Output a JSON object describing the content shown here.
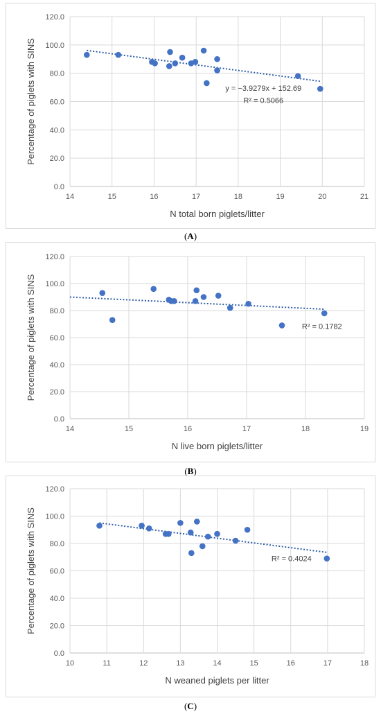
{
  "chart_data": [
    {
      "type": "scatter",
      "panel_label": "A",
      "xlabel": "N total born piglets/litter",
      "ylabel": "Percentage of piglets with SINS",
      "xlim": [
        14,
        21
      ],
      "xticks": [
        14,
        15,
        16,
        17,
        18,
        19,
        20,
        21
      ],
      "ylim": [
        0,
        120
      ],
      "yticks": [
        0,
        20,
        40,
        60,
        80,
        100,
        120
      ],
      "ytick_labels": [
        "0.0",
        "20.0",
        "40.0",
        "60.0",
        "80.0",
        "100.0",
        "120.0"
      ],
      "grid": "horizontal",
      "points": [
        {
          "x": 14.4,
          "y": 93
        },
        {
          "x": 15.15,
          "y": 93
        },
        {
          "x": 15.95,
          "y": 88
        },
        {
          "x": 16.02,
          "y": 87
        },
        {
          "x": 16.36,
          "y": 85
        },
        {
          "x": 16.38,
          "y": 95
        },
        {
          "x": 16.5,
          "y": 87
        },
        {
          "x": 16.67,
          "y": 91
        },
        {
          "x": 16.88,
          "y": 87
        },
        {
          "x": 16.98,
          "y": 88
        },
        {
          "x": 17.18,
          "y": 96
        },
        {
          "x": 17.25,
          "y": 73
        },
        {
          "x": 17.5,
          "y": 90
        },
        {
          "x": 17.5,
          "y": 82
        },
        {
          "x": 19.42,
          "y": 78
        },
        {
          "x": 19.95,
          "y": 69
        }
      ],
      "trendline": {
        "x_start": 14.4,
        "x_end": 19.95,
        "slope": -3.9279,
        "intercept": 152.69
      },
      "equation_label": "y = −3.9279x + 152.69",
      "r2_label": "R² = 0.5066"
    },
    {
      "type": "scatter",
      "panel_label": "B",
      "xlabel": "N live born piglets/litter",
      "ylabel": "Percentage of piglets with SINS",
      "xlim": [
        14,
        19
      ],
      "xticks": [
        14,
        15,
        16,
        17,
        18,
        19
      ],
      "ylim": [
        0,
        120
      ],
      "yticks": [
        0,
        20,
        40,
        60,
        80,
        100,
        120
      ],
      "ytick_labels": [
        "0.0",
        "20.0",
        "40.0",
        "60.0",
        "80.0",
        "100.0",
        "120.0"
      ],
      "grid": "horizontal",
      "points": [
        {
          "x": 14.55,
          "y": 93
        },
        {
          "x": 14.72,
          "y": 73
        },
        {
          "x": 15.42,
          "y": 96
        },
        {
          "x": 15.68,
          "y": 88
        },
        {
          "x": 15.72,
          "y": 87
        },
        {
          "x": 15.77,
          "y": 87
        },
        {
          "x": 16.13,
          "y": 87
        },
        {
          "x": 16.15,
          "y": 95
        },
        {
          "x": 16.27,
          "y": 90
        },
        {
          "x": 16.52,
          "y": 91
        },
        {
          "x": 16.72,
          "y": 82
        },
        {
          "x": 17.03,
          "y": 85
        },
        {
          "x": 17.6,
          "y": 69
        },
        {
          "x": 18.32,
          "y": 78
        }
      ],
      "trendline": {
        "x_start": 14.0,
        "x_end": 18.32,
        "y_start": 90.0,
        "y_end": 81.0
      },
      "r2_label": "R² = 0.1782"
    },
    {
      "type": "scatter",
      "panel_label": "C",
      "xlabel": "N weaned piglets per litter",
      "ylabel": "Percentage of piglets with SINS",
      "xlim": [
        10,
        18
      ],
      "xticks": [
        10,
        11,
        12,
        13,
        14,
        15,
        16,
        17,
        18
      ],
      "ylim": [
        0,
        120
      ],
      "yticks": [
        0,
        20,
        40,
        60,
        80,
        100,
        120
      ],
      "ytick_labels": [
        "0.0",
        "20.0",
        "40.0",
        "60.0",
        "80.0",
        "100.0",
        "120.0"
      ],
      "grid": "horizontal",
      "points": [
        {
          "x": 10.8,
          "y": 93
        },
        {
          "x": 11.95,
          "y": 93
        },
        {
          "x": 12.15,
          "y": 91
        },
        {
          "x": 12.6,
          "y": 87
        },
        {
          "x": 12.68,
          "y": 87
        },
        {
          "x": 13.0,
          "y": 95
        },
        {
          "x": 13.28,
          "y": 88
        },
        {
          "x": 13.3,
          "y": 73
        },
        {
          "x": 13.45,
          "y": 96
        },
        {
          "x": 13.6,
          "y": 78
        },
        {
          "x": 13.75,
          "y": 85
        },
        {
          "x": 14.0,
          "y": 87
        },
        {
          "x": 14.5,
          "y": 82
        },
        {
          "x": 14.82,
          "y": 90
        },
        {
          "x": 16.98,
          "y": 69
        }
      ],
      "trendline": {
        "x_start": 10.8,
        "x_end": 16.98,
        "y_start": 95.0,
        "y_end": 73.5
      },
      "r2_label": "R² = 0.4024"
    }
  ]
}
